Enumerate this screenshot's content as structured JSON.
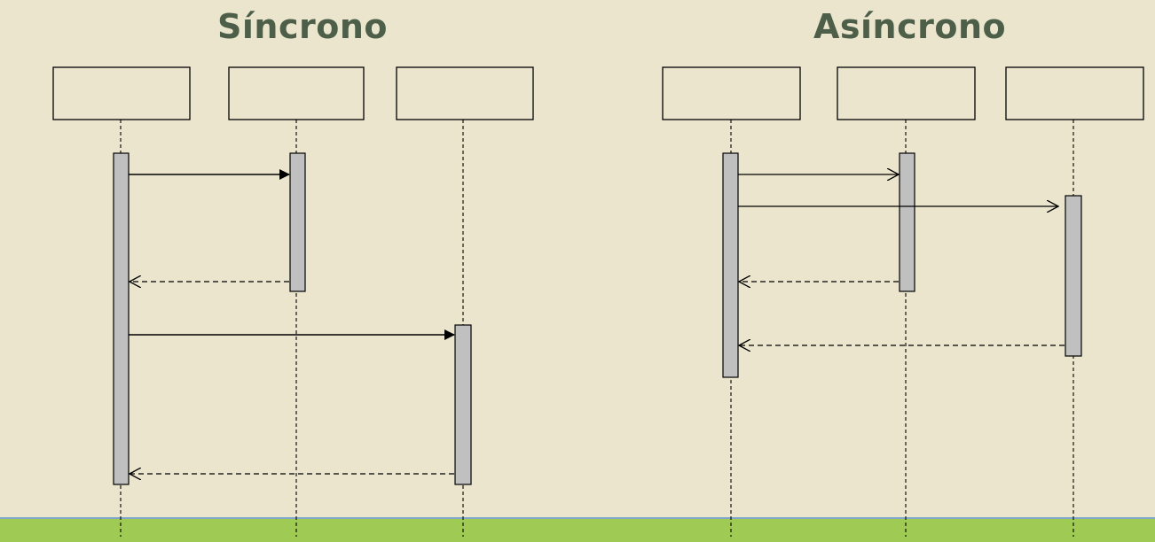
{
  "diagrams": [
    {
      "title": "Síncrono",
      "lifelines": [
        {
          "label": ""
        },
        {
          "label": ""
        },
        {
          "label": ""
        }
      ]
    },
    {
      "title": "Asíncrono",
      "lifelines": [
        {
          "label": ""
        },
        {
          "label": ""
        },
        {
          "label": ""
        }
      ]
    }
  ],
  "colors": {
    "background": "#ebe5cd",
    "title": "#4d5f48",
    "activation_fill": "#c0c0c0",
    "bottom_band": "#9fcb54"
  }
}
